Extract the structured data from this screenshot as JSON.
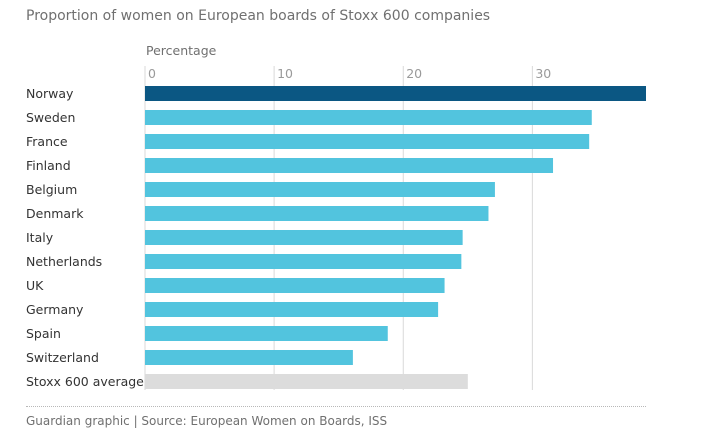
{
  "title": "Proportion of women on European boards of Stoxx 600 companies",
  "footer": "Guardian graphic | Source: European Women on Boards, ISS",
  "colors": {
    "highlight": "#0b5783",
    "bar": "#52c4de",
    "average": "#dcdcdc",
    "grid": "#d9d9d9"
  },
  "chart_data": {
    "type": "bar",
    "orientation": "horizontal",
    "title": "Proportion of women on European boards of Stoxx 600 companies",
    "xlabel": "Percentage",
    "ylabel": "",
    "xlim": [
      0,
      38.8
    ],
    "xticks": [
      0,
      10,
      20,
      30
    ],
    "grid": true,
    "categories": [
      "Norway",
      "Sweden",
      "France",
      "Finland",
      "Belgium",
      "Denmark",
      "Italy",
      "Netherlands",
      "UK",
      "Germany",
      "Spain",
      "Switzerland",
      "Stoxx 600 average"
    ],
    "values": [
      38.8,
      34.6,
      34.4,
      31.6,
      27.1,
      26.6,
      24.6,
      24.5,
      23.2,
      22.7,
      18.8,
      16.1,
      25.0
    ],
    "highlight_index": 0,
    "average_index": 12
  }
}
